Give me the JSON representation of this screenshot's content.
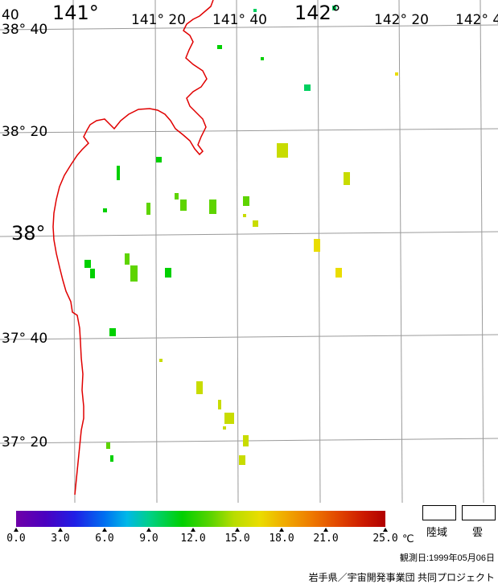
{
  "map": {
    "lon_labels": [
      {
        "text": "141°",
        "kind": "big"
      },
      {
        "text": "141° 20",
        "kind": "med"
      },
      {
        "text": "141° 40",
        "kind": "med"
      },
      {
        "text": "142°",
        "kind": "big"
      },
      {
        "text": "142° 20",
        "kind": "med"
      },
      {
        "text": "142° 4",
        "kind": "med"
      }
    ],
    "lat_labels": [
      {
        "text": "38° 40",
        "kind": "med"
      },
      {
        "text": "38° 20",
        "kind": "med"
      },
      {
        "text": "38°",
        "kind": "big"
      },
      {
        "text": "37° 40",
        "kind": "med"
      },
      {
        "text": "37° 20",
        "kind": "med"
      }
    ],
    "corner_label": "40",
    "coast_color": "#e00000",
    "grid_color": "#9a9a9a"
  },
  "colorbar": {
    "min": 0.0,
    "max": 25.0,
    "tick_labels": [
      "0.0",
      "3.0",
      "6.0",
      "9.0",
      "12.0",
      "15.0",
      "18.0",
      "21.0",
      "25.0"
    ],
    "unit": "℃"
  },
  "legend": {
    "land_label": "陸域",
    "cloud_label": "雲"
  },
  "observation_date": "観測日:1999年05月06日",
  "credit": "岩手県／宇宙開発事業団 共同プロジェクト"
}
